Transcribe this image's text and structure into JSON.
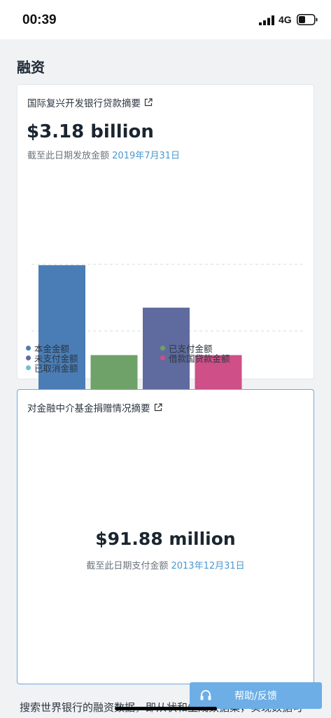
{
  "status_bar": {
    "time": "00:39",
    "network": "4G"
  },
  "page": {
    "section_title": "融资"
  },
  "ibrd_card": {
    "title": "国际复兴开发银行贷款摘要",
    "amount": "$3.18 billion",
    "asof_label": "截至此日期发放金额",
    "asof_date": "2019年7月31日"
  },
  "chart_data": {
    "type": "bar",
    "categories": [
      "本金金额",
      "已支付金额",
      "未支付金额",
      "借款国贷款金额",
      "已取消金额"
    ],
    "values": [
      3.18,
      1.02,
      2.16,
      1.02,
      0.01
    ],
    "colors": [
      "#4a7db5",
      "#6fa269",
      "#5f6b9e",
      "#cf4f88",
      "#6cc0d0"
    ],
    "ylim": [
      0,
      3.2
    ],
    "grid": true,
    "legend_position": "bottom",
    "legend": [
      {
        "label": "本金金额",
        "color": "#4a7db5"
      },
      {
        "label": "已支付金额",
        "color": "#6fa269"
      },
      {
        "label": "未支付金额",
        "color": "#5f6b9e"
      },
      {
        "label": "借款国贷款金额",
        "color": "#cf4f88"
      },
      {
        "label": "已取消金额",
        "color": "#6cc0d0"
      }
    ]
  },
  "fif_card": {
    "title": "对金融中介基金捐赠情况摘要",
    "amount": "$91.88 million",
    "asof_label": "截至此日期支付金额",
    "asof_date": "2013年12月31日"
  },
  "footer": {
    "text": "搜索世界银行的融资数据，即从状和生成数据集，实现数据可"
  },
  "help_button": {
    "label": "帮助/反馈"
  },
  "icons": [
    "external-link-icon",
    "headset-icon",
    "signal-icon",
    "battery-icon"
  ]
}
